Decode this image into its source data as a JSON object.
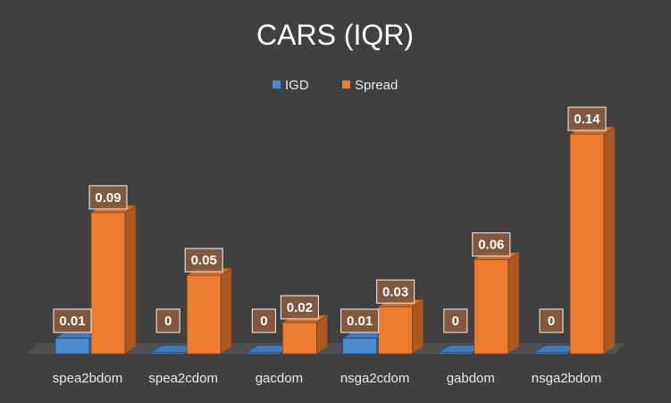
{
  "chart_data": {
    "type": "bar",
    "title": "CARS (IQR)",
    "categories": [
      "spea2bdom",
      "spea2cdom",
      "gacdom",
      "nsga2cdom",
      "gabdom",
      "nsga2bdom"
    ],
    "series": [
      {
        "name": "IGD",
        "color": "#4a8bd1",
        "values": [
          0.01,
          0,
          0,
          0.01,
          0,
          0
        ],
        "labels": [
          "0.01",
          "0",
          "0",
          "0.01",
          "0",
          "0"
        ]
      },
      {
        "name": "Spread",
        "color": "#ec7c30",
        "values": [
          0.09,
          0.05,
          0.02,
          0.03,
          0.06,
          0.14
        ],
        "labels": [
          "0.09",
          "0.05",
          "0.02",
          "0.03",
          "0.06",
          "0.14"
        ]
      }
    ],
    "legend_position": "top",
    "grid": false,
    "style": "3d-clustered-column",
    "background": "#404040",
    "label_box_fill": "#8a5a3c",
    "ylim": [
      0,
      0.14
    ]
  }
}
